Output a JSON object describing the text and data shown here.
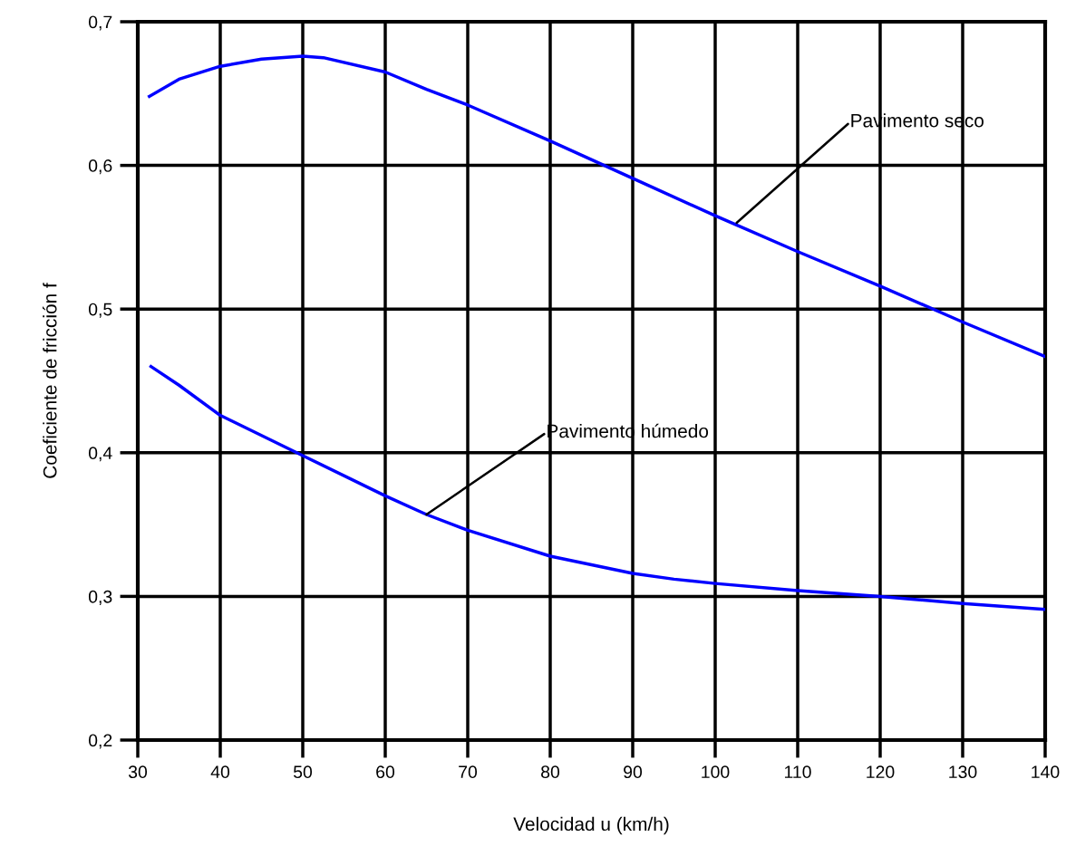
{
  "chart_data": {
    "type": "line",
    "xlabel": "Velocidad u (km/h)",
    "ylabel": "Coeficiente de fricción f",
    "xlim": [
      30,
      140
    ],
    "xticks": [
      30,
      40,
      50,
      60,
      70,
      80,
      90,
      100,
      110,
      120,
      130,
      140
    ],
    "ylim": [
      0.2,
      0.7
    ],
    "yticks": [
      {
        "value": 0.2,
        "label": "0,2"
      },
      {
        "value": 0.3,
        "label": "0,3"
      },
      {
        "value": 0.4,
        "label": "0,4"
      },
      {
        "value": 0.5,
        "label": "0,5"
      },
      {
        "value": 0.6,
        "label": "0,6"
      },
      {
        "value": 0.7,
        "label": "0,7"
      }
    ],
    "grid": true,
    "marker": "none",
    "line_style": "solid",
    "series": [
      {
        "color": "#0000ff",
        "x": [
          31.4,
          35,
          40,
          45,
          50,
          52.5,
          60,
          65,
          70,
          80,
          90,
          100,
          110,
          120,
          130,
          140
        ],
        "values": [
          0.648,
          0.66,
          0.669,
          0.674,
          0.676,
          0.675,
          0.665,
          0.653,
          0.642,
          0.617,
          0.591,
          0.565,
          0.54,
          0.516,
          0.491,
          0.467
        ]
      },
      {
        "color": "#0000ff",
        "x": [
          31.6,
          35,
          40,
          50,
          60,
          65,
          70,
          80,
          90,
          95,
          100,
          110,
          120,
          130,
          140
        ],
        "values": [
          0.46,
          0.447,
          0.426,
          0.398,
          0.37,
          0.357,
          0.346,
          0.328,
          0.316,
          0.312,
          0.309,
          0.304,
          0.3,
          0.295,
          0.291
        ]
      }
    ],
    "annotations": [
      {
        "text": "Pavimento seco",
        "x": 102.6,
        "y": 0.56
      },
      {
        "text": "Pavimento húmedo",
        "x": 65,
        "y": 0.357
      }
    ]
  }
}
